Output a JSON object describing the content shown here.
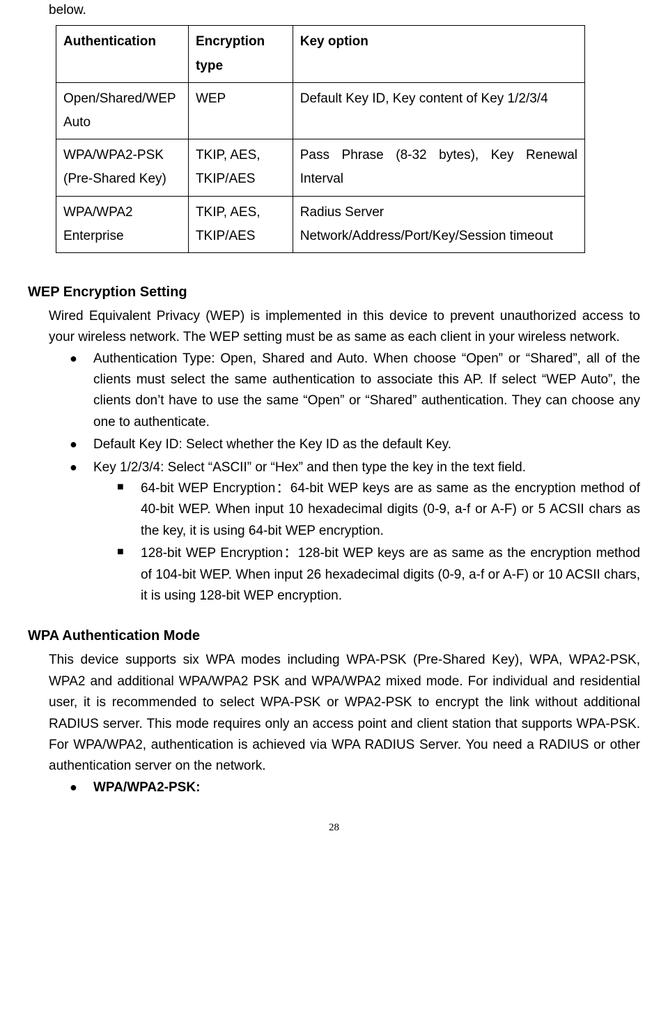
{
  "lead_in": "below.",
  "table": {
    "headers": [
      "Authentication",
      "Encryption type",
      "Key option"
    ],
    "rows": [
      [
        "Open/Shared/WEP Auto",
        "WEP",
        "Default Key ID, Key content of Key 1/2/3/4"
      ],
      [
        "WPA/WPA2-PSK (Pre-Shared Key)",
        "TKIP, AES, TKIP/AES",
        "Pass Phrase (8-32 bytes), Key Renewal Interval"
      ],
      [
        "WPA/WPA2 Enterprise",
        "TKIP, AES, TKIP/AES",
        "Radius Server Network/Address/Port/Key/Session timeout"
      ]
    ]
  },
  "wep": {
    "heading": "WEP Encryption Setting",
    "intro": "Wired Equivalent Privacy (WEP) is implemented in this device to prevent unauthorized access to your wireless network. The WEP setting must be as same as each client in your wireless network.",
    "b1": "Authentication Type: Open, Shared and Auto. When choose “Open” or “Shared”, all of the clients must select the same authentication to associate this AP. If select “WEP Auto”, the clients don’t have to use the same “Open” or “Shared” authentication. They can choose any one to authenticate.",
    "b2": "Default Key ID: Select whether the Key ID as the default Key.",
    "b3": "Key 1/2/3/4: Select “ASCII” or “Hex” and then type the key in the text field.",
    "s1": "64-bit WEP Encryption：64-bit WEP keys are as same as the encryption method of 40-bit WEP. When input 10 hexadecimal digits (0-9, a-f or A-F) or 5 ACSII chars as the key, it is using 64-bit WEP encryption.",
    "s2": "128-bit WEP Encryption：128-bit WEP keys are as same as the encryption method of 104-bit WEP. When input 26 hexadecimal digits (0-9, a-f or A-F) or 10 ACSII chars, it is using 128-bit WEP encryption."
  },
  "wpa": {
    "heading": "WPA Authentication Mode",
    "intro": "This device supports six WPA modes including WPA-PSK (Pre-Shared Key), WPA, WPA2-PSK, WPA2 and additional WPA/WPA2 PSK and WPA/WPA2 mixed mode. For individual and residential user, it is recommended to select WPA-PSK or WPA2-PSK to encrypt the link without additional RADIUS server. This mode requires only an access point and client station that supports WPA-PSK. For WPA/WPA2, authentication is achieved via WPA RADIUS Server. You need a RADIUS or other authentication server on the network.",
    "b1": "WPA/WPA2-PSK:"
  },
  "page_number": "28"
}
